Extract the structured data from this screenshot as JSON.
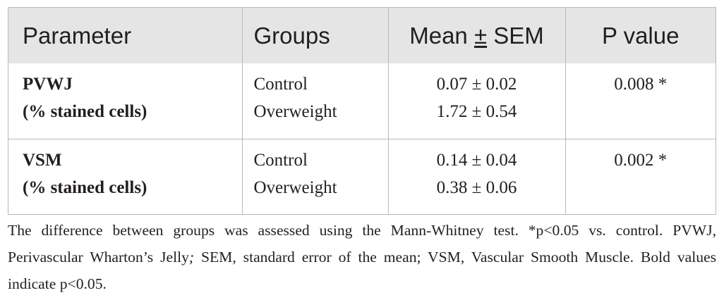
{
  "table": {
    "headers": {
      "parameter": "Parameter",
      "groups": "Groups",
      "mean_label": "Mean ",
      "mean_pm": "±",
      "mean_suffix": " SEM",
      "pvalue": "P value"
    },
    "rows": [
      {
        "parameter_name": "PVWJ",
        "parameter_unit": "(% stained cells)",
        "groups": [
          "Control",
          "Overweight"
        ],
        "means": [
          "0.07 ± 0.02",
          "1.72 ± 0.54"
        ],
        "p_value": "0.008 *"
      },
      {
        "parameter_name": "VSM",
        "parameter_unit": "(% stained cells)",
        "groups": [
          "Control",
          "Overweight"
        ],
        "means": [
          "0.14 ± 0.04",
          "0.38 ± 0.06"
        ],
        "p_value": "0.002 *"
      }
    ]
  },
  "footnote": {
    "part1": "The difference between groups was assessed using the Mann-Whitney test. *p<0.05 vs. control. PVWJ, Perivascular Wharton’s Jelly",
    "semicolon": ";",
    "part2": " SEM, standard error of the mean; VSM, Vascular Smooth Muscle. Bold values indicate p<0.05."
  }
}
